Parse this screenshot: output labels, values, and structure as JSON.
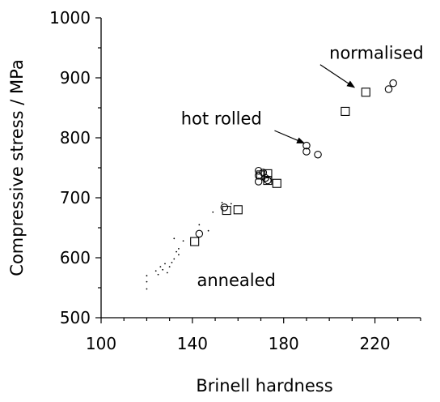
{
  "chart_data": {
    "type": "scatter",
    "title": "",
    "xlabel": "Brinell hardness",
    "ylabel": "Compressive stress / MPa",
    "xlim": [
      100,
      240
    ],
    "ylim": [
      500,
      1000
    ],
    "x_ticks": [
      "100",
      "140",
      "180",
      "220"
    ],
    "x_tick_values": [
      100,
      140,
      180,
      220
    ],
    "y_ticks": [
      "500",
      "600",
      "700",
      "800",
      "900",
      "1000"
    ],
    "y_tick_values": [
      500,
      600,
      700,
      800,
      900,
      1000
    ],
    "grid": false,
    "legend": "none",
    "series": [
      {
        "marker": "dot",
        "points": [
          [
            120,
            548
          ],
          [
            120,
            560
          ],
          [
            120,
            570
          ],
          [
            124,
            578
          ],
          [
            125,
            572
          ],
          [
            126,
            585
          ],
          [
            127,
            580
          ],
          [
            128,
            590
          ],
          [
            129,
            575
          ],
          [
            130,
            585
          ],
          [
            131,
            592
          ],
          [
            132,
            598
          ],
          [
            132,
            632
          ],
          [
            133,
            610
          ],
          [
            134,
            605
          ],
          [
            134,
            615
          ],
          [
            136,
            628
          ],
          [
            143,
            655
          ],
          [
            147,
            645
          ],
          [
            149,
            676
          ],
          [
            153,
            692
          ],
          [
            157,
            690
          ]
        ]
      },
      {
        "marker": "circle",
        "points": [
          [
            143,
            640
          ],
          [
            154,
            684
          ],
          [
            169,
            745
          ],
          [
            169,
            737
          ],
          [
            169,
            727
          ],
          [
            171,
            742
          ],
          [
            172,
            733
          ],
          [
            173,
            729
          ],
          [
            190,
            787
          ],
          [
            190,
            777
          ],
          [
            195,
            772
          ],
          [
            226,
            881
          ],
          [
            228,
            891
          ]
        ]
      },
      {
        "marker": "square",
        "points": [
          [
            141,
            627
          ],
          [
            155,
            679
          ],
          [
            160,
            680
          ],
          [
            170,
            738
          ],
          [
            173,
            740
          ],
          [
            173,
            729
          ],
          [
            177,
            724
          ],
          [
            207,
            844
          ],
          [
            216,
            876
          ]
        ]
      }
    ],
    "annotations": [
      {
        "text": "normalised",
        "x": 200,
        "y": 932,
        "arrow_from": [
          196,
          922
        ],
        "arrow_to": [
          211,
          884
        ]
      },
      {
        "text": "hot rolled",
        "x": 135,
        "y": 822,
        "arrow_from": [
          176,
          812
        ],
        "arrow_to": [
          189,
          791
        ]
      },
      {
        "text": "annealed",
        "x": 142,
        "y": 553
      }
    ]
  }
}
